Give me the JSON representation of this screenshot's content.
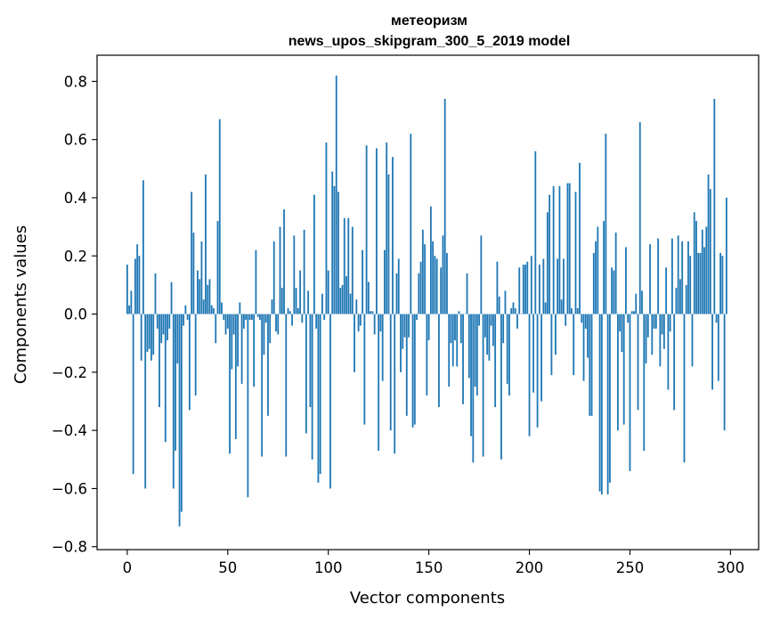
{
  "chart_data": {
    "type": "bar",
    "title": "метеоризм",
    "subtitle": "news_upos_skipgram_300_5_2019 model",
    "xlabel": "Vector components",
    "ylabel": "Components values",
    "xlim": [
      -15,
      314
    ],
    "ylim": [
      -0.81,
      0.89
    ],
    "x_ticks": [
      0,
      50,
      100,
      150,
      200,
      250,
      300
    ],
    "x_tick_labels": [
      "0",
      "50",
      "100",
      "150",
      "200",
      "250",
      "300"
    ],
    "y_ticks": [
      -0.8,
      -0.6,
      -0.4,
      -0.2,
      0.0,
      0.2,
      0.4,
      0.6,
      0.8
    ],
    "y_tick_labels": [
      "−0.8",
      "−0.6",
      "−0.4",
      "−0.2",
      "0.0",
      "0.2",
      "0.4",
      "0.6",
      "0.8"
    ],
    "bar_color": "#1f77b4",
    "grid": false,
    "values": [
      0.17,
      0.03,
      0.08,
      -0.55,
      0.19,
      0.24,
      0.2,
      -0.16,
      0.46,
      -0.6,
      -0.13,
      -0.12,
      -0.16,
      -0.14,
      0.14,
      -0.05,
      -0.32,
      -0.1,
      -0.07,
      -0.44,
      -0.09,
      -0.05,
      0.11,
      -0.6,
      -0.47,
      -0.17,
      -0.73,
      -0.68,
      -0.04,
      0.03,
      -0.02,
      -0.33,
      0.42,
      0.28,
      -0.28,
      0.15,
      0.12,
      0.25,
      0.05,
      0.48,
      0.1,
      0.12,
      0.03,
      0.02,
      -0.1,
      0.32,
      0.67,
      0.04,
      -0.02,
      -0.07,
      -0.05,
      -0.48,
      -0.19,
      -0.07,
      -0.43,
      -0.18,
      0.04,
      -0.24,
      -0.05,
      -0.02,
      -0.63,
      -0.02,
      -0.02,
      -0.25,
      0.22,
      -0.01,
      -0.02,
      -0.49,
      -0.14,
      -0.03,
      -0.35,
      -0.1,
      0.05,
      0.25,
      -0.06,
      -0.07,
      0.3,
      0.09,
      0.36,
      -0.49,
      0.02,
      0.01,
      -0.04,
      0.27,
      0.09,
      0.02,
      0.15,
      -0.03,
      0.29,
      -0.41,
      0.08,
      -0.32,
      -0.5,
      0.41,
      -0.05,
      -0.58,
      -0.55,
      0.07,
      -0.02,
      0.59,
      0.15,
      -0.6,
      0.49,
      0.44,
      0.82,
      0.42,
      0.09,
      0.1,
      0.33,
      0.13,
      0.33,
      0.07,
      0.3,
      -0.2,
      0.05,
      -0.06,
      -0.04,
      0.22,
      -0.38,
      0.58,
      0.11,
      0.01,
      0.01,
      -0.07,
      0.57,
      -0.47,
      -0.06,
      -0.23,
      0.22,
      0.59,
      0.48,
      -0.4,
      0.54,
      -0.48,
      0.14,
      0.19,
      -0.2,
      -0.12,
      -0.08,
      -0.35,
      -0.08,
      0.62,
      -0.39,
      -0.38,
      -0.02,
      0.14,
      0.18,
      0.29,
      0.24,
      -0.28,
      -0.09,
      0.37,
      0.25,
      0.2,
      0.19,
      -0.32,
      0.16,
      0.27,
      0.74,
      0.21,
      -0.25,
      -0.1,
      -0.18,
      -0.09,
      -0.18,
      0.01,
      -0.1,
      -0.31,
      0.0,
      0.14,
      -0.22,
      -0.42,
      -0.51,
      -0.25,
      -0.28,
      -0.04,
      0.27,
      -0.49,
      -0.08,
      -0.14,
      -0.16,
      -0.04,
      -0.11,
      -0.32,
      0.18,
      0.06,
      -0.5,
      -0.1,
      0.08,
      -0.24,
      -0.28,
      0.02,
      0.04,
      0.02,
      -0.05,
      0.16,
      0.0,
      0.17,
      0.17,
      0.18,
      -0.42,
      0.2,
      -0.27,
      0.56,
      -0.39,
      0.17,
      -0.3,
      0.19,
      0.04,
      0.35,
      0.41,
      -0.21,
      0.44,
      -0.14,
      0.19,
      0.44,
      0.05,
      0.19,
      -0.04,
      0.45,
      0.45,
      0.02,
      -0.21,
      0.42,
      0.02,
      0.52,
      -0.03,
      -0.23,
      -0.05,
      -0.15,
      -0.35,
      -0.35,
      0.21,
      0.25,
      0.3,
      -0.61,
      -0.62,
      0.32,
      0.62,
      -0.62,
      -0.58,
      0.16,
      0.15,
      0.28,
      -0.4,
      -0.06,
      -0.13,
      -0.38,
      0.23,
      -0.03,
      -0.54,
      0.01,
      0.01,
      0.07,
      -0.33,
      0.66,
      0.08,
      -0.47,
      -0.17,
      -0.08,
      0.24,
      -0.14,
      -0.05,
      -0.05,
      0.26,
      -0.18,
      -0.07,
      -0.12,
      0.16,
      -0.26,
      -0.06,
      0.26,
      -0.33,
      0.09,
      0.27,
      0.12,
      0.25,
      -0.51,
      0.1,
      0.25,
      0.2,
      -0.18,
      0.35,
      0.32,
      0.21,
      0.21,
      0.29,
      0.23,
      0.3,
      0.48,
      0.43,
      -0.26,
      0.74,
      -0.03,
      -0.23,
      0.21,
      0.2,
      -0.4,
      0.4
    ]
  }
}
